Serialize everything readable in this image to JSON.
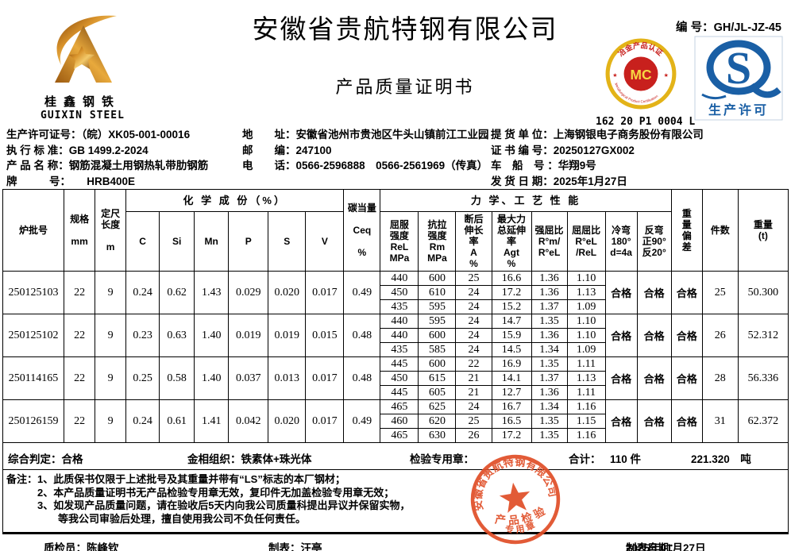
{
  "header": {
    "company": "安徽省贵航特钢有限公司",
    "doc_title": "产品质量证明书",
    "cert_no_label": "编 号：",
    "cert_no": "GH/JL-JZ-45",
    "logo_cn": "桂鑫钢铁",
    "logo_en": "GUIXIN STEEL",
    "mc_code": "162 20 P1 0004 L",
    "mc_top_arc": "冶金产品认证",
    "mc_bottom_arc": "Metallurgical Product Certification",
    "mc_letters": "MC",
    "qs_letter": "S",
    "qs_label": "生产许可"
  },
  "info": {
    "left": [
      {
        "label": "生产许可证号：",
        "value": "（皖）XK05-001-00016"
      },
      {
        "label": "执 行 标 准：",
        "value": "GB 1499.2-2024"
      },
      {
        "label": "产 品 名 称：",
        "value": "钢筋混凝土用钢热轧带肋钢筋"
      },
      {
        "label": "牌　　　号：",
        "value": "　　HRB400E"
      }
    ],
    "middle": [
      {
        "label": "地　　址：",
        "value": "安徽省池州市贵池区牛头山镇前江工业园"
      },
      {
        "label": "邮　　编：",
        "value": "247100"
      },
      {
        "label": "电　　话：",
        "value": "0566-2596888　0566-2561969（传真）"
      }
    ],
    "right": [
      {
        "label": "提 货 单 位：",
        "value": "上海钢银电子商务股份有限公司"
      },
      {
        "label": "证 书 编 号：",
        "value": "20250127GX002"
      },
      {
        "label": "车　船　号 ：",
        "value": "华翔9号"
      },
      {
        "label": "发 货 日 期：",
        "value": "2025年1月27日"
      }
    ]
  },
  "table": {
    "headers": {
      "batch": "炉批号",
      "spec": "规格\n\nmm",
      "length": "定尺\n长度\n\nm",
      "chem_group": "化 学 成 份（%）",
      "c": "C",
      "si": "Si",
      "mn": "Mn",
      "p": "P",
      "s": "S",
      "v": "V",
      "ceq": "碳当量\n\nCeq\n\n%",
      "mech_group": "力 学、工 艺 性 能",
      "rel": "屈服\n强度\nReL\nMPa",
      "rm": "抗拉\n强度\nRm\nMPa",
      "a": "断后\n伸长\n率\nA\n%",
      "agt": "最大力\n总延伸\n率\nAgt\n%",
      "ratio_tensile_yield": "强屈比\nR°m/\nR°eL",
      "ratio_yield": "屈屈比\nR°eL\n/ReL",
      "cold_bend": "冷弯\n180°\nd=4a",
      "reverse_bend": "反弯\n正90°\n反20°",
      "weight_dev": "重\n量\n偏\n差",
      "pieces": "件数",
      "weight": "重量\n(t)"
    },
    "rows": [
      {
        "batch": "250125103",
        "spec": "22",
        "length": "9",
        "chem": {
          "c": "0.24",
          "si": "0.62",
          "mn": "1.43",
          "p": "0.029",
          "s": "0.020",
          "v": "0.017",
          "ceq": "0.49"
        },
        "mech": [
          [
            "440",
            "600",
            "25",
            "16.6",
            "1.36",
            "1.10"
          ],
          [
            "450",
            "610",
            "24",
            "17.2",
            "1.36",
            "1.13"
          ],
          [
            "435",
            "595",
            "24",
            "15.2",
            "1.37",
            "1.09"
          ]
        ],
        "cold_bend": "合格",
        "reverse_bend": "合格",
        "weight_dev": "合格",
        "pieces": "25",
        "weight": "50.300"
      },
      {
        "batch": "250125102",
        "spec": "22",
        "length": "9",
        "chem": {
          "c": "0.23",
          "si": "0.63",
          "mn": "1.40",
          "p": "0.019",
          "s": "0.019",
          "v": "0.015",
          "ceq": "0.48"
        },
        "mech": [
          [
            "440",
            "595",
            "24",
            "14.7",
            "1.35",
            "1.10"
          ],
          [
            "440",
            "600",
            "24",
            "15.9",
            "1.36",
            "1.10"
          ],
          [
            "435",
            "585",
            "24",
            "14.5",
            "1.34",
            "1.09"
          ]
        ],
        "cold_bend": "合格",
        "reverse_bend": "合格",
        "weight_dev": "合格",
        "pieces": "26",
        "weight": "52.312"
      },
      {
        "batch": "250114165",
        "spec": "22",
        "length": "9",
        "chem": {
          "c": "0.25",
          "si": "0.58",
          "mn": "1.40",
          "p": "0.037",
          "s": "0.013",
          "v": "0.017",
          "ceq": "0.48"
        },
        "mech": [
          [
            "445",
            "600",
            "22",
            "16.9",
            "1.35",
            "1.11"
          ],
          [
            "450",
            "615",
            "21",
            "14.1",
            "1.37",
            "1.13"
          ],
          [
            "445",
            "605",
            "21",
            "12.7",
            "1.36",
            "1.11"
          ]
        ],
        "cold_bend": "合格",
        "reverse_bend": "合格",
        "weight_dev": "合格",
        "pieces": "28",
        "weight": "56.336"
      },
      {
        "batch": "250126159",
        "spec": "22",
        "length": "9",
        "chem": {
          "c": "0.24",
          "si": "0.61",
          "mn": "1.41",
          "p": "0.042",
          "s": "0.020",
          "v": "0.017",
          "ceq": "0.49"
        },
        "mech": [
          [
            "465",
            "625",
            "24",
            "16.7",
            "1.34",
            "1.16"
          ],
          [
            "460",
            "620",
            "25",
            "16.5",
            "1.35",
            "1.15"
          ],
          [
            "465",
            "630",
            "26",
            "17.2",
            "1.35",
            "1.16"
          ]
        ],
        "cold_bend": "合格",
        "reverse_bend": "合格",
        "weight_dev": "合格",
        "pieces": "31",
        "weight": "62.372"
      }
    ]
  },
  "summary": {
    "verdict": "综合判定：合格",
    "metallography": "金相组织：铁素体+珠光体",
    "seal_label": "检验专用章：",
    "total_label": "合计：",
    "total_pieces": "110 件",
    "total_weight": "221.320　吨"
  },
  "notes": {
    "prefix": "备注：",
    "lines": [
      "1、此质保书仅限于上述批号及其重量并带有“LS”标志的本厂钢材；",
      "2、本产品质量证明书无产品检验专用章无效，复印件无加盖检验专用章无效；",
      "3、如发现产品质量问题，请在验收后5天内向我公司质量科提出异议并保留实物，",
      "等我公司审验后处理，擅自使用我公司不负任何责任。"
    ]
  },
  "footer": {
    "inspector": "质检员：陈峰钦",
    "tabulator": "制表：汪亭",
    "date_label": "制表日期：",
    "date": "2025年01月27日"
  },
  "stamp": {
    "company_arc": "安徽省贵航特钢有限公司",
    "line1": "产品检验",
    "line2": "专用章",
    "color": "#e04f28"
  },
  "colors": {
    "mc_gold": "#e3b318",
    "mc_red": "#c8201d",
    "qs_blue": "#1a5fa5",
    "stamp_red": "#e04f28"
  }
}
